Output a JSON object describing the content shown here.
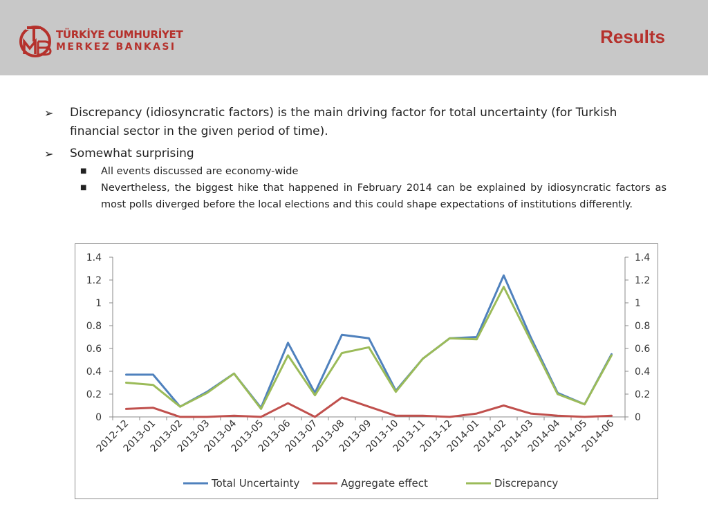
{
  "header": {
    "logo_line1": "TÜRKİYE CUMHURİYET",
    "logo_line2": "MERKEZ BANKASI",
    "title": "Results"
  },
  "bullets": [
    {
      "text": "Discrepancy (idiosyncratic factors) is the main driving factor for total uncertainty (for Turkish financial sector in the given period of time)."
    },
    {
      "text": "Somewhat surprising",
      "sub": [
        "All events discussed are economy-wide",
        "Nevertheless, the biggest hike that happened in February 2014 can be explained by idiosyncratic factors as most polls diverged before the local elections and this could shape expectations of institutions differently."
      ]
    }
  ],
  "colors": {
    "brand": "#b5312c",
    "header_bg": "#c8c8c8"
  },
  "chart_data": {
    "type": "line",
    "categories": [
      "2012-12",
      "2013-01",
      "2013-02",
      "2013-03",
      "2013-04",
      "2013-05",
      "2013-06",
      "2013-07",
      "2013-08",
      "2013-09",
      "2013-10",
      "2013-11",
      "2013-12",
      "2014-01",
      "2014-02",
      "2014-03",
      "2014-04",
      "2014-05",
      "2014-06"
    ],
    "ylim": [
      0,
      1.4
    ],
    "yticks": [
      "0",
      "0.2",
      "0.4",
      "0.6",
      "0.8",
      "1",
      "1.2",
      "1.4"
    ],
    "y2ticks": [
      "0",
      "0.2",
      "0.4",
      "0.6",
      "0.8",
      "1",
      "1.2",
      "1.4"
    ],
    "grid": false,
    "legend_position": "bottom",
    "series": [
      {
        "name": "Total Uncertainty",
        "color": "#4f81bd",
        "values": [
          0.37,
          0.37,
          0.09,
          0.22,
          0.38,
          0.08,
          0.65,
          0.21,
          0.72,
          0.69,
          0.23,
          0.51,
          0.69,
          0.7,
          1.24,
          0.7,
          0.21,
          0.11,
          0.55
        ]
      },
      {
        "name": "Aggregate effect",
        "color": "#c0504d",
        "values": [
          0.07,
          0.08,
          0.0,
          0.0,
          0.01,
          0.0,
          0.12,
          0.0,
          0.17,
          0.09,
          0.01,
          0.01,
          0.0,
          0.03,
          0.1,
          0.03,
          0.01,
          0.0,
          0.01
        ]
      },
      {
        "name": "Discrepancy",
        "color": "#9bbb59",
        "values": [
          0.3,
          0.28,
          0.09,
          0.21,
          0.38,
          0.07,
          0.54,
          0.19,
          0.56,
          0.61,
          0.22,
          0.51,
          0.69,
          0.68,
          1.14,
          0.67,
          0.2,
          0.11,
          0.54
        ]
      }
    ]
  }
}
